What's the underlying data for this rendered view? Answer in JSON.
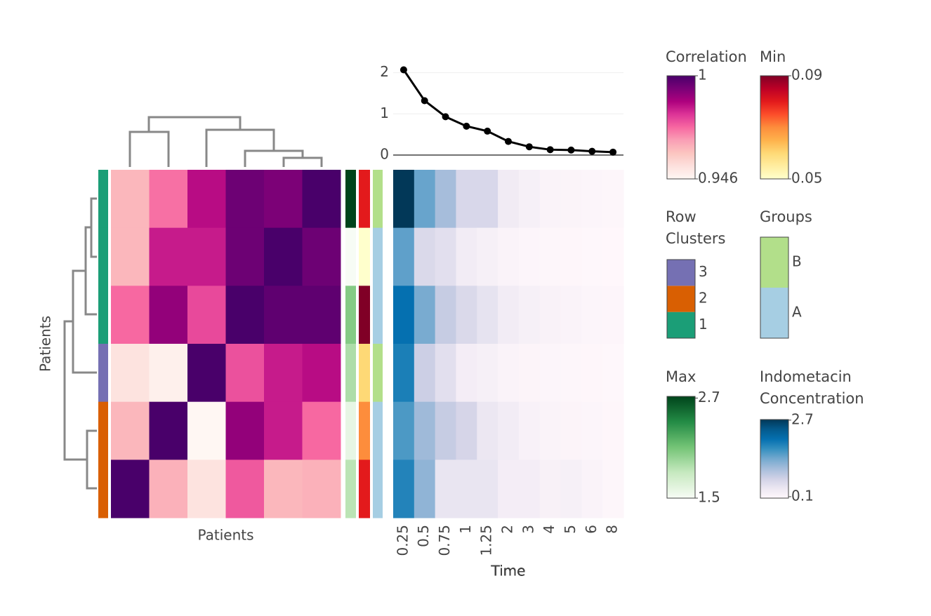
{
  "chart_data": [
    {
      "type": "heatmap",
      "xlabel": "Patients",
      "ylabel": "Patients",
      "values": [
        [
          0.962,
          0.972,
          0.985,
          0.995,
          0.993,
          1.0
        ],
        [
          0.962,
          0.983,
          0.983,
          0.995,
          1.0,
          0.995
        ],
        [
          0.973,
          0.99,
          0.977,
          1.0,
          0.997,
          0.997
        ],
        [
          0.952,
          0.948,
          1.0,
          0.976,
          0.983,
          0.985
        ],
        [
          0.962,
          1.0,
          0.946,
          0.99,
          0.983,
          0.973
        ],
        [
          1.0,
          0.963,
          0.952,
          0.975,
          0.962,
          0.963
        ]
      ],
      "colorbar": {
        "title": "Correlation",
        "lim": [
          0.946,
          1
        ],
        "ticks": [
          0.946,
          1
        ],
        "colors": [
          "#fff7f3",
          "#fde0dd",
          "#fcc5c0",
          "#fa9fb5",
          "#f768a1",
          "#dd3497",
          "#ae017e",
          "#7a0177",
          "#49006a"
        ]
      }
    },
    {
      "type": "category-strip",
      "title": "Row Clusters",
      "values": [
        1,
        1,
        1,
        3,
        2,
        2
      ],
      "categories": [
        1,
        2,
        3
      ],
      "colors": [
        "#1b9e77",
        "#d95f02",
        "#7570b3"
      ]
    },
    {
      "type": "color-strip",
      "title": "Max",
      "values": [
        2.72,
        1.5,
        2.05,
        1.9,
        1.6,
        1.85
      ],
      "lim": [
        1.5,
        2.72
      ],
      "ticks": [
        1.5,
        2.7
      ],
      "colors": [
        "#f7fcf5",
        "#c7e9c0",
        "#74c476",
        "#238b45",
        "#00441b"
      ]
    },
    {
      "type": "color-strip",
      "title": "Min",
      "values": [
        0.08,
        0.05,
        0.09,
        0.06,
        0.07,
        0.08
      ],
      "lim": [
        0.05,
        0.09
      ],
      "ticks": [
        0.05,
        0.09
      ],
      "colors": [
        "#ffffcc",
        "#ffeda0",
        "#fed976",
        "#feb24c",
        "#fd8d3c",
        "#fc4e2a",
        "#e31a1c",
        "#bd0026",
        "#800026"
      ]
    },
    {
      "type": "category-strip",
      "title": "Groups",
      "values": [
        "B",
        "A",
        "A",
        "B",
        "A",
        "A"
      ],
      "categories": [
        "A",
        "B"
      ],
      "colors": [
        "#a6cee3",
        "#b2df8a"
      ]
    },
    {
      "type": "heatmap",
      "xlabel": "Time",
      "categories": [
        "0.25",
        "0.5",
        "0.75",
        "1",
        "1.25",
        "2",
        "3",
        "4",
        "5",
        "6",
        "8"
      ],
      "values": [
        [
          2.72,
          1.45,
          1.05,
          0.62,
          0.62,
          0.3,
          0.2,
          0.14,
          0.12,
          0.1,
          0.08
        ],
        [
          1.5,
          0.6,
          0.5,
          0.28,
          0.2,
          0.13,
          0.1,
          0.08,
          0.07,
          0.06,
          0.05
        ],
        [
          2.05,
          1.35,
          0.8,
          0.6,
          0.45,
          0.28,
          0.2,
          0.16,
          0.13,
          0.1,
          0.09
        ],
        [
          1.9,
          0.75,
          0.5,
          0.25,
          0.2,
          0.14,
          0.11,
          0.1,
          0.08,
          0.07,
          0.06
        ],
        [
          1.6,
          1.1,
          0.8,
          0.65,
          0.38,
          0.27,
          0.17,
          0.14,
          0.11,
          0.1,
          0.07
        ],
        [
          1.85,
          1.2,
          0.42,
          0.42,
          0.42,
          0.25,
          0.25,
          0.18,
          0.2,
          0.14,
          0.08
        ]
      ],
      "colorbar": {
        "title": "Indometacin Concentration",
        "lim": [
          0.05,
          2.72
        ],
        "ticks": [
          0.1,
          2.7
        ],
        "colors": [
          "#fff7fb",
          "#ece7f2",
          "#d0d1e6",
          "#a6bddb",
          "#74a9cf",
          "#3690c0",
          "#0570b0",
          "#045a8d",
          "#023858"
        ]
      }
    },
    {
      "type": "line",
      "values": [
        2.07,
        1.32,
        0.93,
        0.7,
        0.58,
        0.33,
        0.2,
        0.13,
        0.12,
        0.09,
        0.07
      ],
      "color": "#000000",
      "ylim": [
        -0.18,
        2.3
      ],
      "yticks": [
        0,
        1,
        2
      ],
      "grid": true
    }
  ]
}
